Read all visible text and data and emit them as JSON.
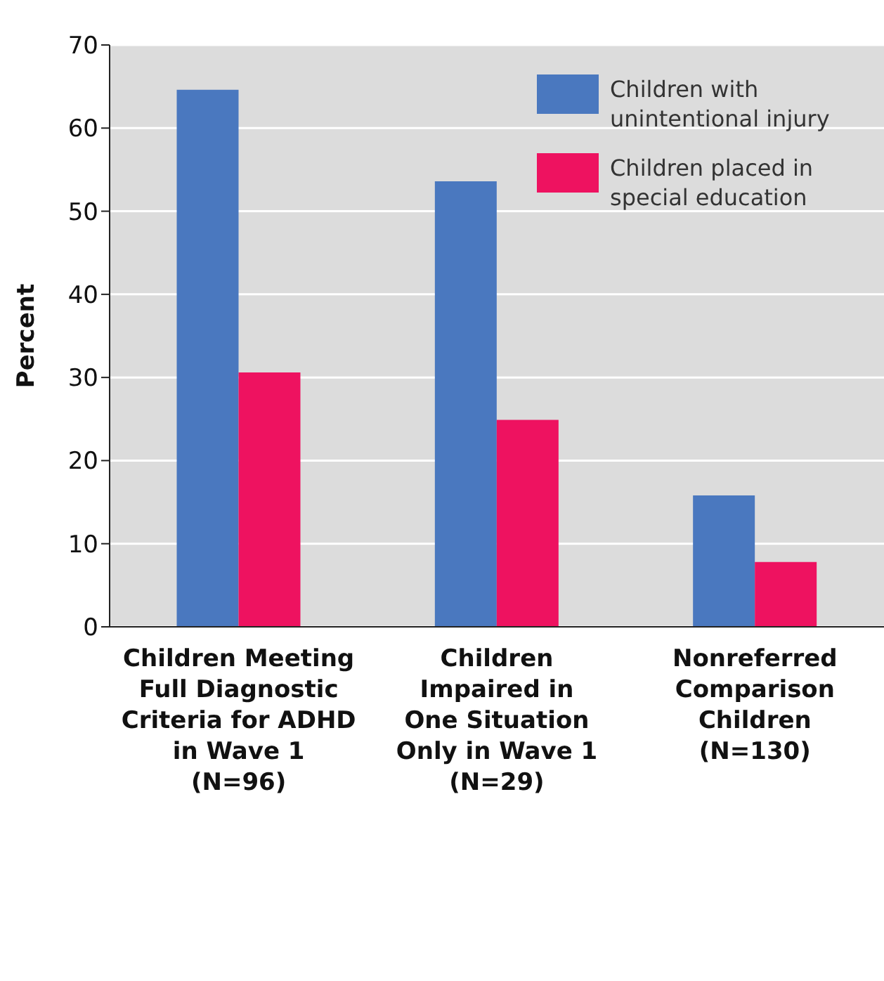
{
  "chart_data": {
    "type": "bar",
    "ylabel": "Percent",
    "categories": [
      "Children Meeting\nFull Diagnostic\nCriteria for ADHD\nin Wave 1\n(N=96)",
      "Children\nImpaired in\nOne Situation\nOnly in Wave 1\n(N=29)",
      "Nonreferred\nComparison\nChildren\n(N=130)"
    ],
    "series": [
      {
        "name": "Children with unintentional injury",
        "color": "#4a78bf",
        "values": [
          64.6,
          53.6,
          15.8
        ]
      },
      {
        "name": "Children placed in special education",
        "color": "#ee1260",
        "values": [
          30.6,
          24.9,
          7.8
        ]
      }
    ],
    "ylim": [
      0,
      70
    ],
    "yticks": [
      0,
      10,
      20,
      30,
      40,
      50,
      60,
      70
    ],
    "grid": "y",
    "legend": "top right"
  }
}
